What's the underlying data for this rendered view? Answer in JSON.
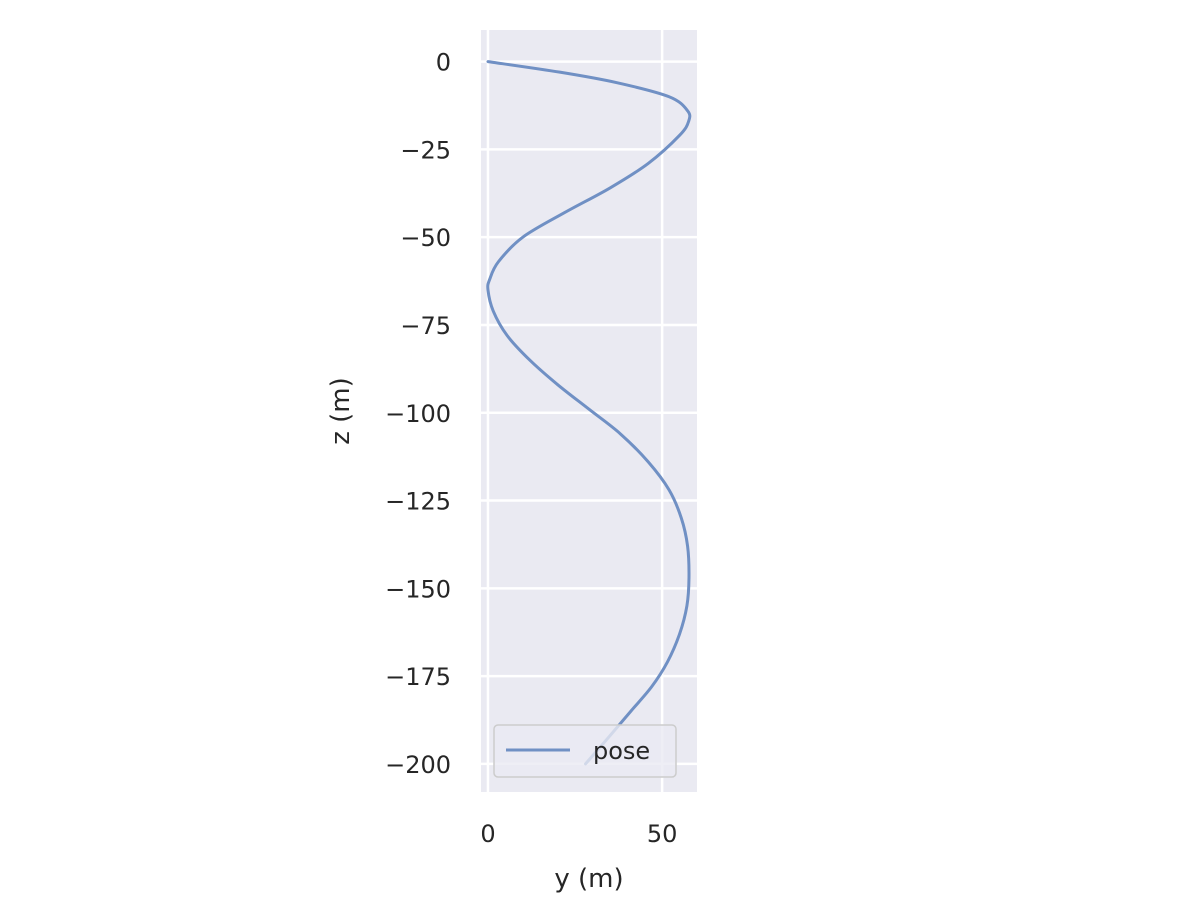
{
  "chart_data": {
    "type": "line",
    "xlabel": "y (m)",
    "ylabel": "z (m)",
    "xlim": [
      -2,
      60
    ],
    "ylim": [
      -208,
      9
    ],
    "xticks": [
      0,
      50
    ],
    "yticks": [
      0,
      -25,
      -50,
      -75,
      -100,
      -125,
      -150,
      -175,
      -200
    ],
    "grid": true,
    "legend_position": "lower-right",
    "series": [
      {
        "name": "pose",
        "color": "#7090c4",
        "x": [
          0,
          20.6,
          37,
          52,
          57.3,
          57.6,
          55,
          46,
          35,
          22,
          10,
          3,
          0.5,
          0,
          1.5,
          5.5,
          12,
          20,
          29,
          38,
          46,
          52,
          55.5,
          57.3,
          57.7,
          57.1,
          55,
          51.5,
          47,
          41,
          35,
          28
        ],
        "y": [
          0,
          -3,
          -6,
          -10,
          -14,
          -17,
          -21,
          -29,
          -36,
          -43,
          -50,
          -57,
          -62,
          -65,
          -71,
          -78,
          -85,
          -92,
          -99,
          -106,
          -114,
          -122,
          -130,
          -138,
          -147,
          -155,
          -163,
          -171,
          -178,
          -185,
          -192,
          -200
        ]
      }
    ]
  }
}
